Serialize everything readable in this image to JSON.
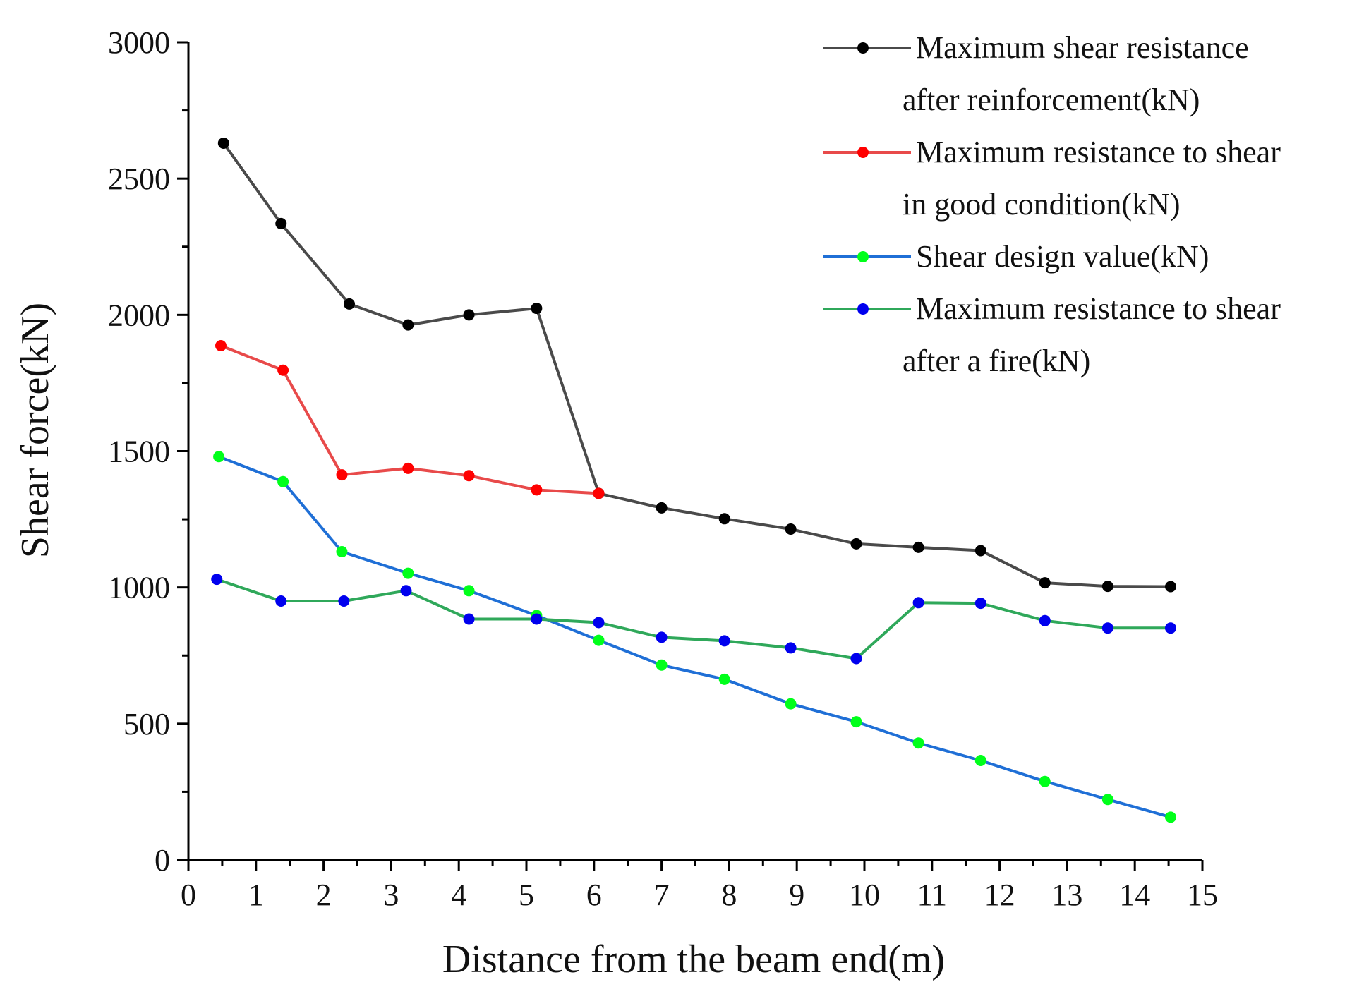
{
  "chart_data": {
    "type": "line",
    "title": "",
    "xlabel": "Distance from the beam end(m)",
    "ylabel": "Shear force(kN)",
    "xlim": [
      0,
      15
    ],
    "ylim": [
      0,
      3000
    ],
    "x_ticks": [
      "0",
      "1",
      "2",
      "3",
      "4",
      "5",
      "6",
      "7",
      "8",
      "9",
      "10",
      "11",
      "12",
      "13",
      "14",
      "15"
    ],
    "y_ticks": [
      "0",
      "500",
      "1000",
      "1500",
      "2000",
      "2500",
      "3000"
    ],
    "grid": false,
    "legend_position": "top-right",
    "series": [
      {
        "name_lines": [
          "Maximum shear resistance",
          "after reinforcement(kN)"
        ],
        "line_color": "#4a4a4a",
        "marker_color": "#000000",
        "x": [
          0.52,
          1.37,
          2.38,
          3.25,
          4.15,
          5.15,
          6.07,
          7.0,
          7.93,
          8.91,
          9.88,
          10.8,
          11.72,
          12.67,
          13.6,
          14.53
        ],
        "y": [
          2630,
          2335,
          2040,
          1963,
          2000,
          2024,
          1345,
          1292,
          1252,
          1214,
          1160,
          1147,
          1135,
          1017,
          1004,
          1003
        ]
      },
      {
        "name_lines": [
          "Maximum resistance to shear",
          "in good condition(kN)"
        ],
        "line_color": "#e84a4a",
        "marker_color": "#ff0000",
        "x": [
          0.48,
          1.4,
          2.27,
          3.25,
          4.15,
          5.15,
          6.07
        ],
        "y": [
          1887,
          1797,
          1413,
          1437,
          1410,
          1358,
          1345
        ]
      },
      {
        "name_lines": [
          "Shear design value(kN)"
        ],
        "line_color": "#1f6fd6",
        "marker_color": "#00ff1a",
        "x": [
          0.45,
          1.4,
          2.27,
          3.25,
          4.15,
          5.15,
          6.07,
          7.0,
          7.93,
          8.91,
          9.88,
          10.8,
          11.72,
          12.67,
          13.6,
          14.53
        ],
        "y": [
          1480,
          1388,
          1131,
          1052,
          988,
          897,
          806,
          715,
          663,
          573,
          507,
          429,
          365,
          288,
          222,
          157
        ]
      },
      {
        "name_lines": [
          "Maximum resistance to shear",
          "after a fire(kN)"
        ],
        "line_color": "#2fa85a",
        "marker_color": "#0000ee",
        "x": [
          0.42,
          1.37,
          2.3,
          3.22,
          4.15,
          5.15,
          6.07,
          7.0,
          7.93,
          8.91,
          9.88,
          10.8,
          11.72,
          12.67,
          13.6,
          14.53
        ],
        "y": [
          1030,
          950,
          950,
          988,
          884,
          884,
          871,
          817,
          804,
          778,
          739,
          944,
          942,
          878,
          851,
          851
        ]
      }
    ]
  }
}
